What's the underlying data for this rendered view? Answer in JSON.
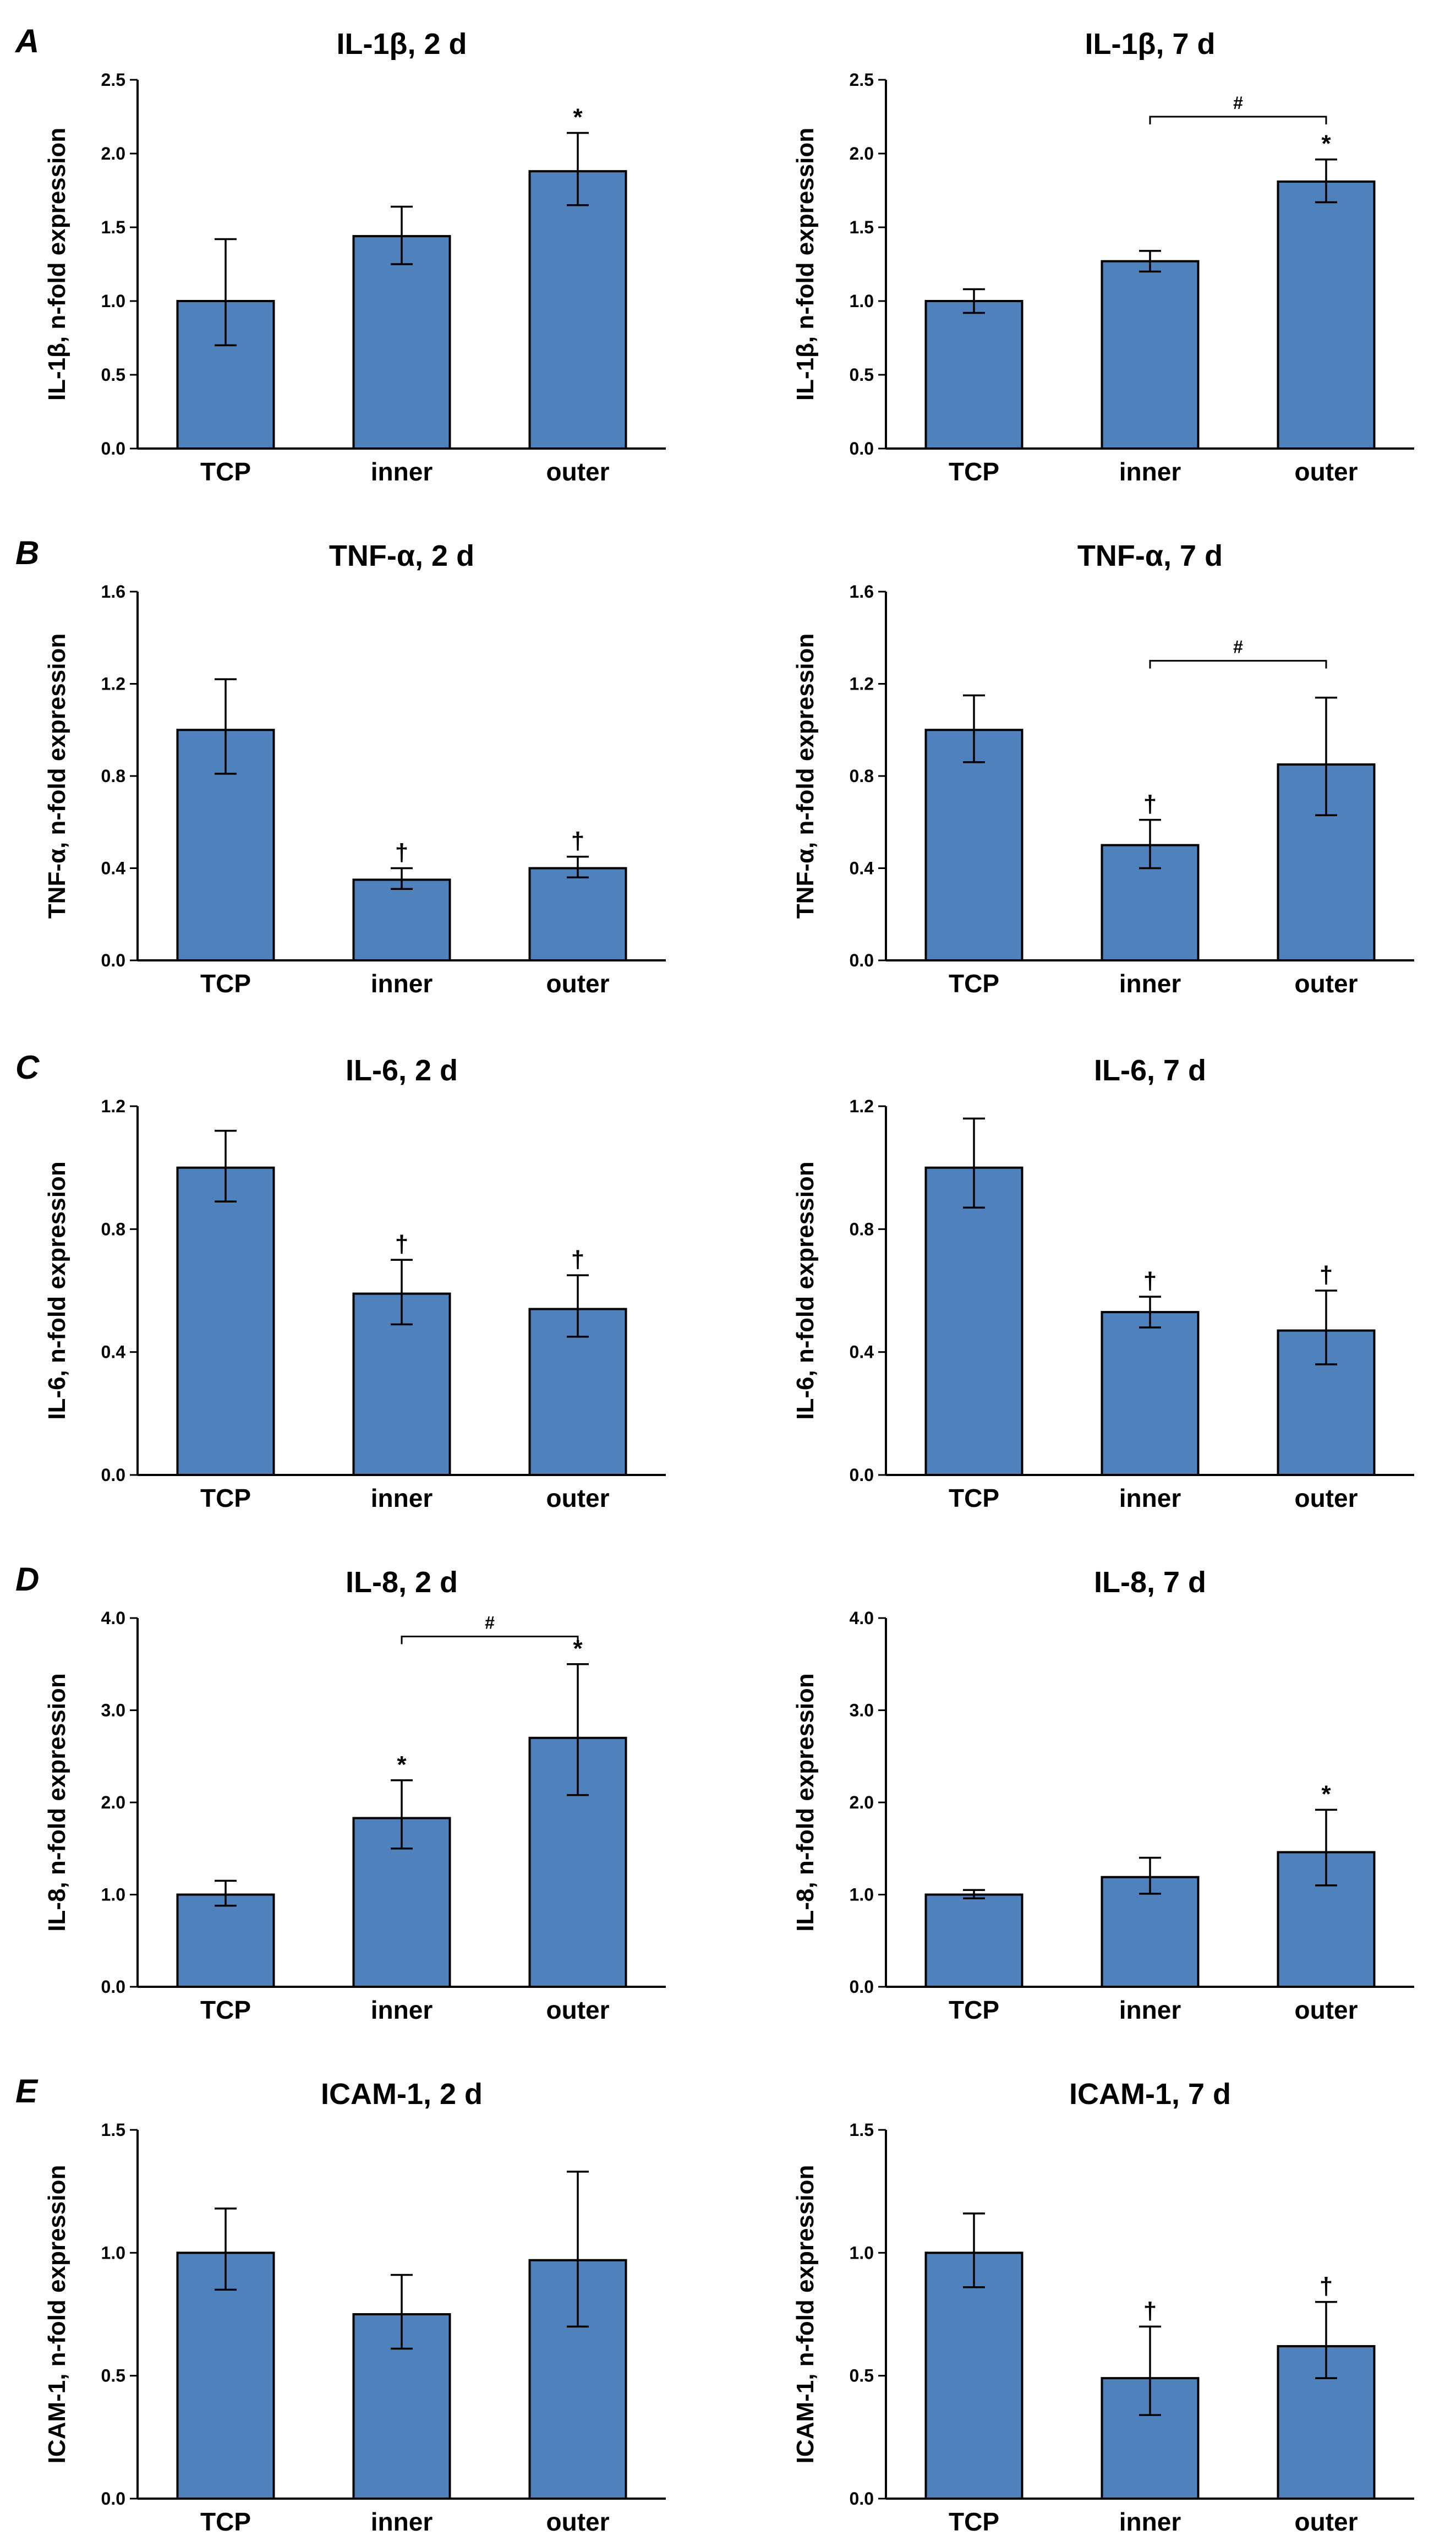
{
  "colors": {
    "bar_fill": "#4f81bd",
    "bar_stroke": "#000000",
    "axis": "#000000"
  },
  "panels": [
    {
      "letter": "A",
      "row": 0
    },
    {
      "letter": "B",
      "row": 1
    },
    {
      "letter": "C",
      "row": 2
    },
    {
      "letter": "D",
      "row": 3
    },
    {
      "letter": "E",
      "row": 4
    }
  ],
  "chart_data": [
    {
      "id": "il1b-2d",
      "row": 0,
      "col": 0,
      "type": "bar",
      "title": "IL-1β, 2 d",
      "ylabel": "IL-1β, n-fold expression",
      "categories": [
        "TCP",
        "inner",
        "outer"
      ],
      "values": [
        1.0,
        1.44,
        1.88
      ],
      "err_upper": [
        1.42,
        1.64,
        2.14
      ],
      "err_lower": [
        0.7,
        1.25,
        1.65
      ],
      "markers": [
        "",
        "",
        "*"
      ],
      "bracket": null,
      "ylim": [
        0,
        2.5
      ],
      "yticks": [
        "0.0",
        "0.5",
        "1.0",
        "1.5",
        "2.0",
        "2.5"
      ]
    },
    {
      "id": "il1b-7d",
      "row": 0,
      "col": 1,
      "type": "bar",
      "title": "IL-1β, 7 d",
      "ylabel": "IL-1β, n-fold expression",
      "categories": [
        "TCP",
        "inner",
        "outer"
      ],
      "values": [
        1.0,
        1.27,
        1.81
      ],
      "err_upper": [
        1.08,
        1.34,
        1.96
      ],
      "err_lower": [
        0.92,
        1.2,
        1.67
      ],
      "markers": [
        "",
        "",
        "*"
      ],
      "bracket": {
        "from": 1,
        "to": 2,
        "y": 2.25,
        "label": "#"
      },
      "ylim": [
        0,
        2.5
      ],
      "yticks": [
        "0.0",
        "0.5",
        "1.0",
        "1.5",
        "2.0",
        "2.5"
      ]
    },
    {
      "id": "tnfa-2d",
      "row": 1,
      "col": 0,
      "type": "bar",
      "title": "TNF-α, 2 d",
      "ylabel": "TNF-α, n-fold expression",
      "categories": [
        "TCP",
        "inner",
        "outer"
      ],
      "values": [
        1.0,
        0.35,
        0.4
      ],
      "err_upper": [
        1.22,
        0.4,
        0.45
      ],
      "err_lower": [
        0.81,
        0.31,
        0.36
      ],
      "markers": [
        "",
        "†",
        "†"
      ],
      "bracket": null,
      "ylim": [
        0,
        1.6
      ],
      "yticks": [
        "0.0",
        "0.4",
        "0.8",
        "1.2",
        "1.6"
      ]
    },
    {
      "id": "tnfa-7d",
      "row": 1,
      "col": 1,
      "type": "bar",
      "title": "TNF-α, 7 d",
      "ylabel": "TNF-α, n-fold expression",
      "categories": [
        "TCP",
        "inner",
        "outer"
      ],
      "values": [
        1.0,
        0.5,
        0.85
      ],
      "err_upper": [
        1.15,
        0.61,
        1.14
      ],
      "err_lower": [
        0.86,
        0.4,
        0.63
      ],
      "markers": [
        "",
        "†",
        ""
      ],
      "bracket": {
        "from": 1,
        "to": 2,
        "y": 1.3,
        "label": "#"
      },
      "ylim": [
        0,
        1.6
      ],
      "yticks": [
        "0.0",
        "0.4",
        "0.8",
        "1.2",
        "1.6"
      ]
    },
    {
      "id": "il6-2d",
      "row": 2,
      "col": 0,
      "type": "bar",
      "title": "IL-6, 2 d",
      "ylabel": "IL-6, n-fold expression",
      "categories": [
        "TCP",
        "inner",
        "outer"
      ],
      "values": [
        1.0,
        0.59,
        0.54
      ],
      "err_upper": [
        1.12,
        0.7,
        0.65
      ],
      "err_lower": [
        0.89,
        0.49,
        0.45
      ],
      "markers": [
        "",
        "†",
        "†"
      ],
      "bracket": null,
      "ylim": [
        0,
        1.2
      ],
      "yticks": [
        "0.0",
        "0.4",
        "0.8",
        "1.2"
      ]
    },
    {
      "id": "il6-7d",
      "row": 2,
      "col": 1,
      "type": "bar",
      "title": "IL-6, 7 d",
      "ylabel": "IL-6, n-fold expression",
      "categories": [
        "TCP",
        "inner",
        "outer"
      ],
      "values": [
        1.0,
        0.53,
        0.47
      ],
      "err_upper": [
        1.16,
        0.58,
        0.6
      ],
      "err_lower": [
        0.87,
        0.48,
        0.36
      ],
      "markers": [
        "",
        "†",
        "†"
      ],
      "bracket": null,
      "ylim": [
        0,
        1.2
      ],
      "yticks": [
        "0.0",
        "0.4",
        "0.8",
        "1.2"
      ]
    },
    {
      "id": "il8-2d",
      "row": 3,
      "col": 0,
      "type": "bar",
      "title": "IL-8, 2 d",
      "ylabel": "IL-8, n-fold expression",
      "categories": [
        "TCP",
        "inner",
        "outer"
      ],
      "values": [
        1.0,
        1.83,
        2.7
      ],
      "err_upper": [
        1.15,
        2.24,
        3.5
      ],
      "err_lower": [
        0.88,
        1.5,
        2.08
      ],
      "markers": [
        "",
        "*",
        "*"
      ],
      "bracket": {
        "from": 1,
        "to": 2,
        "y": 3.8,
        "label": "#"
      },
      "ylim": [
        0,
        4.0
      ],
      "yticks": [
        "0.0",
        "1.0",
        "2.0",
        "3.0",
        "4.0"
      ]
    },
    {
      "id": "il8-7d",
      "row": 3,
      "col": 1,
      "type": "bar",
      "title": "IL-8, 7 d",
      "ylabel": "IL-8, n-fold expression",
      "categories": [
        "TCP",
        "inner",
        "outer"
      ],
      "values": [
        1.0,
        1.19,
        1.46
      ],
      "err_upper": [
        1.05,
        1.4,
        1.92
      ],
      "err_lower": [
        0.96,
        1.01,
        1.1
      ],
      "markers": [
        "",
        "",
        "*"
      ],
      "bracket": null,
      "ylim": [
        0,
        4.0
      ],
      "yticks": [
        "0.0",
        "1.0",
        "2.0",
        "3.0",
        "4.0"
      ]
    },
    {
      "id": "icam1-2d",
      "row": 4,
      "col": 0,
      "type": "bar",
      "title": "ICAM-1, 2 d",
      "ylabel": "ICAM-1, n-fold expression",
      "categories": [
        "TCP",
        "inner",
        "outer"
      ],
      "values": [
        1.0,
        0.75,
        0.97
      ],
      "err_upper": [
        1.18,
        0.91,
        1.33
      ],
      "err_lower": [
        0.85,
        0.61,
        0.7
      ],
      "markers": [
        "",
        "",
        ""
      ],
      "bracket": null,
      "ylim": [
        0,
        1.5
      ],
      "yticks": [
        "0.0",
        "0.5",
        "1.0",
        "1.5"
      ]
    },
    {
      "id": "icam1-7d",
      "row": 4,
      "col": 1,
      "type": "bar",
      "title": "ICAM-1, 7 d",
      "ylabel": "ICAM-1, n-fold expression",
      "categories": [
        "TCP",
        "inner",
        "outer"
      ],
      "values": [
        1.0,
        0.49,
        0.62
      ],
      "err_upper": [
        1.16,
        0.7,
        0.8
      ],
      "err_lower": [
        0.86,
        0.34,
        0.49
      ],
      "markers": [
        "",
        "†",
        "†"
      ],
      "bracket": null,
      "ylim": [
        0,
        1.5
      ],
      "yticks": [
        "0.0",
        "0.5",
        "1.0",
        "1.5"
      ]
    }
  ]
}
